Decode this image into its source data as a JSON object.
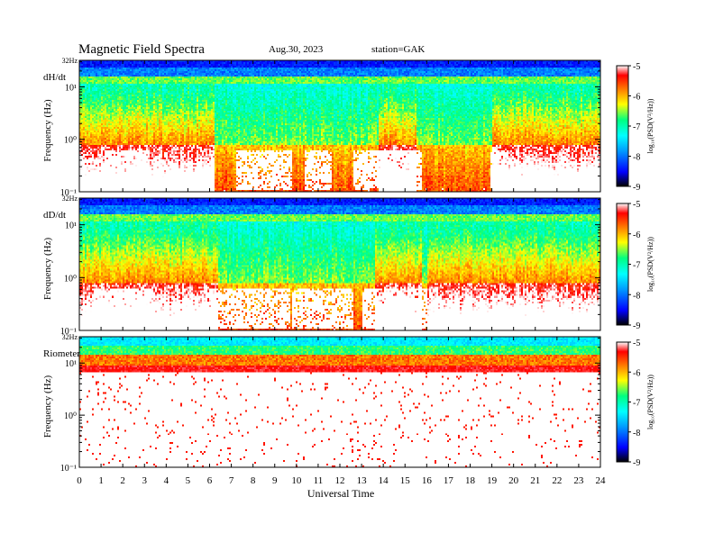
{
  "header": {
    "title": "Magnetic  Field  Spectra",
    "date": "Aug.30, 2023",
    "station": "station=GAK"
  },
  "chart_data": {
    "type": "heatmap",
    "xlabel": "Universal Time",
    "xlim": [
      0,
      24
    ],
    "xticks": [
      "0",
      "1",
      "2",
      "3",
      "4",
      "5",
      "6",
      "7",
      "8",
      "9",
      "10",
      "11",
      "12",
      "13",
      "14",
      "15",
      "16",
      "17",
      "18",
      "19",
      "20",
      "21",
      "22",
      "23",
      "24"
    ],
    "ylabel": "Frequency  (Hz)",
    "ylim_hz": [
      0.1,
      32
    ],
    "log_y": true,
    "colorbar": {
      "label": "log₁₀(PSD(V²/Hz))",
      "range": [
        -9,
        -5
      ],
      "ticks": [
        "-5",
        "-6",
        "-7",
        "-8",
        "-9"
      ],
      "colors": [
        "#000000",
        "#0000ff",
        "#00a0ff",
        "#00ffff",
        "#00ff80",
        "#ffff00",
        "#ff8000",
        "#ff0000",
        "#ffffff"
      ]
    },
    "panels": [
      {
        "name": "dH/dt",
        "top_label": "32Hz",
        "y_tick_labels": [
          "10¹",
          "10⁰",
          "10⁻¹"
        ],
        "white_regions_ut": [
          [
            1.2,
            3.2
          ],
          [
            7.2,
            9.8
          ],
          [
            10.4,
            11.6
          ],
          [
            12.6,
            15.8
          ],
          [
            18.9,
            19.8
          ]
        ],
        "red_region_ut": [
          [
            0,
            6.2
          ],
          [
            13.8,
            15.5
          ],
          [
            19,
            24
          ]
        ]
      },
      {
        "name": "dD/dt",
        "top_label": "32Hz",
        "y_tick_labels": [
          "10¹",
          "10⁰",
          "10⁻¹"
        ],
        "white_regions_ut": [
          [
            0.6,
            3.3
          ],
          [
            6.0,
            9.7
          ],
          [
            9.8,
            12.6
          ],
          [
            13.0,
            16.0
          ]
        ],
        "red_region_ut": [
          [
            0,
            6.4
          ],
          [
            13.6,
            15.8
          ],
          [
            16,
            24
          ]
        ]
      },
      {
        "name": "Riometer",
        "top_label": "32Hz",
        "y_tick_labels": [
          "10¹",
          "10⁰",
          "10⁻¹"
        ],
        "white_regions_ut": [
          [
            0,
            24
          ]
        ],
        "red_region_ut": [
          [
            0,
            24
          ]
        ]
      }
    ]
  }
}
